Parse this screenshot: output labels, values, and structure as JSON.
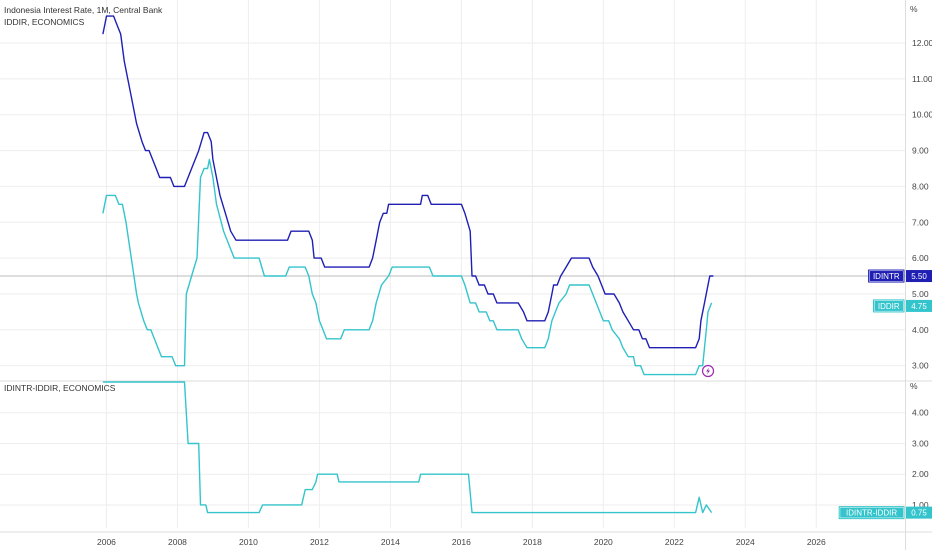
{
  "chart_data": [
    {
      "type": "line",
      "title": "Indonesia Interest Rate, 1M, Central Bank",
      "subtitle": "IDDIR, ECONOMICS",
      "unit": "%",
      "ylim": [
        2.6,
        13.2
      ],
      "yticks": [
        3.0,
        4.0,
        5.0,
        6.0,
        7.0,
        8.0,
        9.0,
        10.0,
        11.0,
        12.0
      ],
      "series": [
        {
          "name": "IDINTR",
          "color": "#1f1fb4",
          "last_label": "5.50",
          "points": [
            [
              2005.9,
              12.25
            ],
            [
              2006.0,
              12.75
            ],
            [
              2006.2,
              12.75
            ],
            [
              2006.3,
              12.5
            ],
            [
              2006.4,
              12.25
            ],
            [
              2006.5,
              11.5
            ],
            [
              2006.7,
              10.5
            ],
            [
              2006.85,
              9.75
            ],
            [
              2007.0,
              9.25
            ],
            [
              2007.1,
              9.0
            ],
            [
              2007.2,
              9.0
            ],
            [
              2007.4,
              8.5
            ],
            [
              2007.5,
              8.25
            ],
            [
              2007.8,
              8.25
            ],
            [
              2007.9,
              8.0
            ],
            [
              2008.2,
              8.0
            ],
            [
              2008.4,
              8.5
            ],
            [
              2008.6,
              9.0
            ],
            [
              2008.75,
              9.5
            ],
            [
              2008.85,
              9.5
            ],
            [
              2008.95,
              9.25
            ],
            [
              2009.0,
              8.75
            ],
            [
              2009.2,
              7.75
            ],
            [
              2009.35,
              7.25
            ],
            [
              2009.5,
              6.75
            ],
            [
              2009.65,
              6.5
            ],
            [
              2011.1,
              6.5
            ],
            [
              2011.2,
              6.75
            ],
            [
              2011.7,
              6.75
            ],
            [
              2011.8,
              6.5
            ],
            [
              2011.85,
              6.0
            ],
            [
              2012.05,
              6.0
            ],
            [
              2012.15,
              5.75
            ],
            [
              2013.4,
              5.75
            ],
            [
              2013.5,
              6.0
            ],
            [
              2013.6,
              6.5
            ],
            [
              2013.7,
              7.0
            ],
            [
              2013.8,
              7.25
            ],
            [
              2013.9,
              7.25
            ],
            [
              2013.95,
              7.5
            ],
            [
              2014.85,
              7.5
            ],
            [
              2014.9,
              7.75
            ],
            [
              2015.05,
              7.75
            ],
            [
              2015.15,
              7.5
            ],
            [
              2016.0,
              7.5
            ],
            [
              2016.1,
              7.25
            ],
            [
              2016.25,
              6.75
            ],
            [
              2016.3,
              5.5
            ],
            [
              2016.4,
              5.5
            ],
            [
              2016.5,
              5.25
            ],
            [
              2016.65,
              5.25
            ],
            [
              2016.75,
              5.0
            ],
            [
              2016.9,
              5.0
            ],
            [
              2017.0,
              4.75
            ],
            [
              2017.6,
              4.75
            ],
            [
              2017.75,
              4.5
            ],
            [
              2017.85,
              4.25
            ],
            [
              2018.35,
              4.25
            ],
            [
              2018.45,
              4.5
            ],
            [
              2018.55,
              5.0
            ],
            [
              2018.6,
              5.25
            ],
            [
              2018.7,
              5.25
            ],
            [
              2018.8,
              5.5
            ],
            [
              2018.95,
              5.75
            ],
            [
              2019.1,
              6.0
            ],
            [
              2019.6,
              6.0
            ],
            [
              2019.7,
              5.75
            ],
            [
              2019.85,
              5.5
            ],
            [
              2019.95,
              5.25
            ],
            [
              2020.05,
              5.0
            ],
            [
              2020.3,
              5.0
            ],
            [
              2020.45,
              4.75
            ],
            [
              2020.55,
              4.5
            ],
            [
              2020.7,
              4.25
            ],
            [
              2020.85,
              4.0
            ],
            [
              2021.0,
              4.0
            ],
            [
              2021.1,
              3.75
            ],
            [
              2021.2,
              3.75
            ],
            [
              2021.3,
              3.5
            ],
            [
              2022.6,
              3.5
            ],
            [
              2022.7,
              3.75
            ],
            [
              2022.75,
              4.25
            ],
            [
              2022.85,
              4.75
            ],
            [
              2022.95,
              5.25
            ],
            [
              2023.0,
              5.5
            ],
            [
              2023.1,
              5.5
            ]
          ]
        },
        {
          "name": "IDDIR",
          "color": "#33c4cc",
          "last_label": "4.75",
          "points": [
            [
              2005.9,
              7.25
            ],
            [
              2006.0,
              7.75
            ],
            [
              2006.25,
              7.75
            ],
            [
              2006.35,
              7.5
            ],
            [
              2006.45,
              7.5
            ],
            [
              2006.55,
              7.0
            ],
            [
              2006.7,
              6.0
            ],
            [
              2006.85,
              5.0
            ],
            [
              2006.9,
              4.75
            ],
            [
              2007.05,
              4.25
            ],
            [
              2007.15,
              4.0
            ],
            [
              2007.25,
              4.0
            ],
            [
              2007.45,
              3.5
            ],
            [
              2007.55,
              3.25
            ],
            [
              2007.85,
              3.25
            ],
            [
              2007.95,
              3.0
            ],
            [
              2008.2,
              3.0
            ],
            [
              2008.25,
              5.0
            ],
            [
              2008.4,
              5.5
            ],
            [
              2008.55,
              6.0
            ],
            [
              2008.65,
              8.25
            ],
            [
              2008.75,
              8.5
            ],
            [
              2008.85,
              8.5
            ],
            [
              2008.9,
              8.75
            ],
            [
              2009.0,
              8.25
            ],
            [
              2009.1,
              7.5
            ],
            [
              2009.3,
              6.75
            ],
            [
              2009.5,
              6.25
            ],
            [
              2009.6,
              6.0
            ],
            [
              2010.3,
              6.0
            ],
            [
              2010.45,
              5.5
            ],
            [
              2011.05,
              5.5
            ],
            [
              2011.15,
              5.75
            ],
            [
              2011.6,
              5.75
            ],
            [
              2011.7,
              5.5
            ],
            [
              2011.8,
              5.0
            ],
            [
              2011.9,
              4.75
            ],
            [
              2012.0,
              4.25
            ],
            [
              2012.1,
              4.0
            ],
            [
              2012.2,
              3.75
            ],
            [
              2012.6,
              3.75
            ],
            [
              2012.7,
              4.0
            ],
            [
              2013.4,
              4.0
            ],
            [
              2013.5,
              4.25
            ],
            [
              2013.6,
              4.75
            ],
            [
              2013.75,
              5.25
            ],
            [
              2013.95,
              5.5
            ],
            [
              2014.05,
              5.75
            ],
            [
              2015.1,
              5.75
            ],
            [
              2015.2,
              5.5
            ],
            [
              2016.0,
              5.5
            ],
            [
              2016.1,
              5.25
            ],
            [
              2016.25,
              4.75
            ],
            [
              2016.4,
              4.75
            ],
            [
              2016.5,
              4.5
            ],
            [
              2016.7,
              4.5
            ],
            [
              2016.8,
              4.25
            ],
            [
              2016.9,
              4.25
            ],
            [
              2017.0,
              4.0
            ],
            [
              2017.6,
              4.0
            ],
            [
              2017.7,
              3.75
            ],
            [
              2017.85,
              3.5
            ],
            [
              2018.35,
              3.5
            ],
            [
              2018.45,
              3.75
            ],
            [
              2018.55,
              4.25
            ],
            [
              2018.65,
              4.5
            ],
            [
              2018.75,
              4.75
            ],
            [
              2018.95,
              5.0
            ],
            [
              2019.05,
              5.25
            ],
            [
              2019.6,
              5.25
            ],
            [
              2019.7,
              5.0
            ],
            [
              2019.8,
              4.75
            ],
            [
              2019.9,
              4.5
            ],
            [
              2020.0,
              4.25
            ],
            [
              2020.15,
              4.25
            ],
            [
              2020.25,
              4.0
            ],
            [
              2020.45,
              3.75
            ],
            [
              2020.55,
              3.5
            ],
            [
              2020.7,
              3.25
            ],
            [
              2020.85,
              3.25
            ],
            [
              2020.9,
              3.0
            ],
            [
              2021.05,
              3.0
            ],
            [
              2021.15,
              2.75
            ],
            [
              2022.6,
              2.75
            ],
            [
              2022.7,
              3.0
            ],
            [
              2022.8,
              3.0
            ],
            [
              2022.85,
              3.5
            ],
            [
              2022.9,
              4.0
            ],
            [
              2022.95,
              4.5
            ],
            [
              2023.05,
              4.75
            ]
          ]
        }
      ],
      "horizontal_line": 5.5
    },
    {
      "type": "line",
      "title": "IDINTR-IDDIR, ECONOMICS",
      "unit": "%",
      "ylim": [
        0.25,
        5.0
      ],
      "yticks": [
        1.0,
        2.0,
        3.0,
        4.0
      ],
      "series": [
        {
          "name": "IDINTR-IDDIR",
          "color": "#33c4cc",
          "last_label": "0.75",
          "points": [
            [
              2005.9,
              5.0
            ],
            [
              2008.2,
              5.0
            ],
            [
              2008.3,
              3.0
            ],
            [
              2008.6,
              3.0
            ],
            [
              2008.65,
              1.0
            ],
            [
              2008.8,
              1.0
            ],
            [
              2008.85,
              0.75
            ],
            [
              2010.3,
              0.75
            ],
            [
              2010.4,
              1.0
            ],
            [
              2011.5,
              1.0
            ],
            [
              2011.6,
              1.5
            ],
            [
              2011.8,
              1.5
            ],
            [
              2011.9,
              1.75
            ],
            [
              2011.95,
              2.0
            ],
            [
              2012.5,
              2.0
            ],
            [
              2012.55,
              1.75
            ],
            [
              2014.8,
              1.75
            ],
            [
              2014.85,
              2.0
            ],
            [
              2016.2,
              2.0
            ],
            [
              2016.3,
              0.75
            ],
            [
              2022.6,
              0.75
            ],
            [
              2022.7,
              1.25
            ],
            [
              2022.8,
              0.75
            ],
            [
              2022.9,
              1.0
            ],
            [
              2023.05,
              0.75
            ]
          ]
        }
      ]
    }
  ],
  "x_axis": {
    "xlim": [
      2003.0,
      2028.5
    ],
    "tick_labels": [
      "2006",
      "2008",
      "2010",
      "2012",
      "2014",
      "2016",
      "2018",
      "2020",
      "2022",
      "2024",
      "2026"
    ],
    "tick_values": [
      2006,
      2008,
      2010,
      2012,
      2014,
      2016,
      2018,
      2020,
      2022,
      2024,
      2026
    ]
  },
  "annotation": {
    "icon": "lightning-icon",
    "x": 2022.95,
    "color": "#9c27b0"
  },
  "colors": {
    "grid": "#eeeeee",
    "separator": "#dddddd",
    "price_line": "#bbbbbb"
  }
}
